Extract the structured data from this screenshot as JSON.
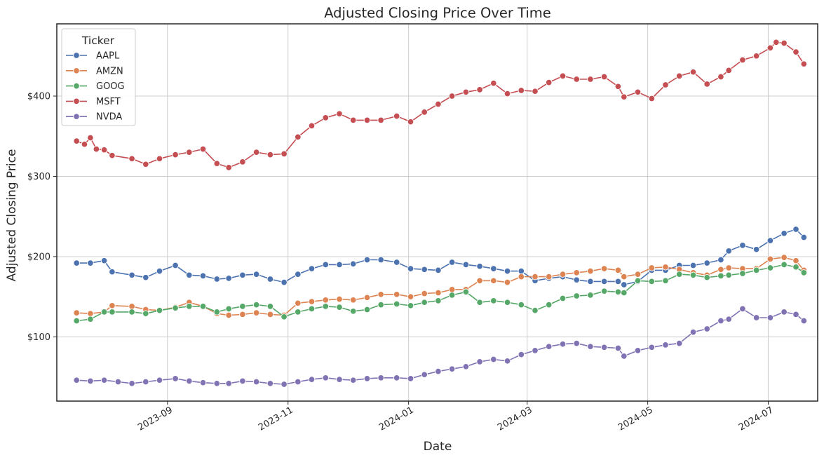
{
  "chart_data": {
    "type": "line",
    "title": "Adjusted Closing Price Over Time",
    "xlabel": "Date",
    "ylabel": "Adjusted Closing Price",
    "x_type": "date",
    "xlim": [
      "2023-07-07",
      "2024-07-26"
    ],
    "ylim": [
      20,
      490
    ],
    "x_ticks": [
      "2023-09-01",
      "2023-11-01",
      "2024-01-01",
      "2024-03-01",
      "2024-05-01",
      "2024-07-01"
    ],
    "x_tick_labels": [
      "2023-09",
      "2023-11",
      "2024-01",
      "2024-03",
      "2024-05",
      "2024-07"
    ],
    "y_ticks": [
      100,
      200,
      300,
      400
    ],
    "y_tick_labels": [
      "$100",
      "$200",
      "$300",
      "$400"
    ],
    "grid": true,
    "legend_title": "Ticker",
    "legend_position": "top-left",
    "series": [
      {
        "name": "AAPL",
        "color": "#4c72b0",
        "points": [
          [
            "2023-07-17",
            192
          ],
          [
            "2023-07-24",
            192
          ],
          [
            "2023-07-31",
            195
          ],
          [
            "2023-08-04",
            181
          ],
          [
            "2023-08-14",
            177
          ],
          [
            "2023-08-21",
            174
          ],
          [
            "2023-08-28",
            182
          ],
          [
            "2023-09-05",
            189
          ],
          [
            "2023-09-12",
            177
          ],
          [
            "2023-09-19",
            176
          ],
          [
            "2023-09-26",
            172
          ],
          [
            "2023-10-02",
            173
          ],
          [
            "2023-10-09",
            177
          ],
          [
            "2023-10-16",
            178
          ],
          [
            "2023-10-23",
            172
          ],
          [
            "2023-10-30",
            168
          ],
          [
            "2023-11-06",
            178
          ],
          [
            "2023-11-13",
            185
          ],
          [
            "2023-11-20",
            190
          ],
          [
            "2023-11-27",
            190
          ],
          [
            "2023-12-04",
            191
          ],
          [
            "2023-12-11",
            196
          ],
          [
            "2023-12-18",
            196
          ],
          [
            "2023-12-26",
            193
          ],
          [
            "2024-01-02",
            185
          ],
          [
            "2024-01-09",
            184
          ],
          [
            "2024-01-16",
            183
          ],
          [
            "2024-01-23",
            193
          ],
          [
            "2024-01-30",
            190
          ],
          [
            "2024-02-06",
            188
          ],
          [
            "2024-02-13",
            185
          ],
          [
            "2024-02-20",
            182
          ],
          [
            "2024-02-27",
            182
          ],
          [
            "2024-03-05",
            170
          ],
          [
            "2024-03-12",
            173
          ],
          [
            "2024-03-19",
            175
          ],
          [
            "2024-03-26",
            171
          ],
          [
            "2024-04-02",
            169
          ],
          [
            "2024-04-09",
            169
          ],
          [
            "2024-04-16",
            169
          ],
          [
            "2024-04-19",
            165
          ],
          [
            "2024-04-26",
            169
          ],
          [
            "2024-05-03",
            183
          ],
          [
            "2024-05-10",
            183
          ],
          [
            "2024-05-17",
            189
          ],
          [
            "2024-05-24",
            189
          ],
          [
            "2024-05-31",
            192
          ],
          [
            "2024-06-07",
            196
          ],
          [
            "2024-06-11",
            207
          ],
          [
            "2024-06-18",
            214
          ],
          [
            "2024-06-25",
            209
          ],
          [
            "2024-07-02",
            220
          ],
          [
            "2024-07-09",
            229
          ],
          [
            "2024-07-15",
            234
          ],
          [
            "2024-07-19",
            224
          ]
        ]
      },
      {
        "name": "AMZN",
        "color": "#dd8452",
        "points": [
          [
            "2023-07-17",
            130
          ],
          [
            "2023-07-24",
            129
          ],
          [
            "2023-07-31",
            131
          ],
          [
            "2023-08-04",
            139
          ],
          [
            "2023-08-14",
            138
          ],
          [
            "2023-08-21",
            134
          ],
          [
            "2023-08-28",
            133
          ],
          [
            "2023-09-05",
            137
          ],
          [
            "2023-09-12",
            143
          ],
          [
            "2023-09-19",
            138
          ],
          [
            "2023-09-26",
            129
          ],
          [
            "2023-10-02",
            127
          ],
          [
            "2023-10-09",
            128
          ],
          [
            "2023-10-16",
            130
          ],
          [
            "2023-10-23",
            128
          ],
          [
            "2023-10-30",
            127
          ],
          [
            "2023-11-06",
            142
          ],
          [
            "2023-11-13",
            144
          ],
          [
            "2023-11-20",
            146
          ],
          [
            "2023-11-27",
            147
          ],
          [
            "2023-12-04",
            146
          ],
          [
            "2023-12-11",
            149
          ],
          [
            "2023-12-18",
            153
          ],
          [
            "2023-12-26",
            153
          ],
          [
            "2024-01-02",
            150
          ],
          [
            "2024-01-09",
            154
          ],
          [
            "2024-01-16",
            155
          ],
          [
            "2024-01-23",
            159
          ],
          [
            "2024-01-30",
            159
          ],
          [
            "2024-02-06",
            170
          ],
          [
            "2024-02-13",
            170
          ],
          [
            "2024-02-20",
            168
          ],
          [
            "2024-02-27",
            175
          ],
          [
            "2024-03-05",
            175
          ],
          [
            "2024-03-12",
            175
          ],
          [
            "2024-03-19",
            178
          ],
          [
            "2024-03-26",
            180
          ],
          [
            "2024-04-02",
            182
          ],
          [
            "2024-04-09",
            185
          ],
          [
            "2024-04-16",
            183
          ],
          [
            "2024-04-19",
            175
          ],
          [
            "2024-04-26",
            178
          ],
          [
            "2024-05-03",
            186
          ],
          [
            "2024-05-10",
            187
          ],
          [
            "2024-05-17",
            184
          ],
          [
            "2024-05-24",
            180
          ],
          [
            "2024-05-31",
            177
          ],
          [
            "2024-06-07",
            184
          ],
          [
            "2024-06-11",
            186
          ],
          [
            "2024-06-18",
            185
          ],
          [
            "2024-06-25",
            185
          ],
          [
            "2024-07-02",
            197
          ],
          [
            "2024-07-09",
            199
          ],
          [
            "2024-07-15",
            195
          ],
          [
            "2024-07-19",
            183
          ]
        ]
      },
      {
        "name": "GOOG",
        "color": "#55a868",
        "points": [
          [
            "2023-07-17",
            120
          ],
          [
            "2023-07-24",
            122
          ],
          [
            "2023-07-31",
            131
          ],
          [
            "2023-08-04",
            131
          ],
          [
            "2023-08-14",
            131
          ],
          [
            "2023-08-21",
            129
          ],
          [
            "2023-08-28",
            133
          ],
          [
            "2023-09-05",
            136
          ],
          [
            "2023-09-12",
            138
          ],
          [
            "2023-09-19",
            138
          ],
          [
            "2023-09-26",
            131
          ],
          [
            "2023-10-02",
            135
          ],
          [
            "2023-10-09",
            138
          ],
          [
            "2023-10-16",
            140
          ],
          [
            "2023-10-23",
            138
          ],
          [
            "2023-10-30",
            125
          ],
          [
            "2023-11-06",
            131
          ],
          [
            "2023-11-13",
            135
          ],
          [
            "2023-11-20",
            138
          ],
          [
            "2023-11-27",
            137
          ],
          [
            "2023-12-04",
            132
          ],
          [
            "2023-12-11",
            134
          ],
          [
            "2023-12-18",
            140
          ],
          [
            "2023-12-26",
            141
          ],
          [
            "2024-01-02",
            139
          ],
          [
            "2024-01-09",
            143
          ],
          [
            "2024-01-16",
            145
          ],
          [
            "2024-01-23",
            152
          ],
          [
            "2024-01-30",
            156
          ],
          [
            "2024-02-06",
            143
          ],
          [
            "2024-02-13",
            145
          ],
          [
            "2024-02-20",
            143
          ],
          [
            "2024-02-27",
            140
          ],
          [
            "2024-03-05",
            133
          ],
          [
            "2024-03-12",
            140
          ],
          [
            "2024-03-19",
            148
          ],
          [
            "2024-03-26",
            151
          ],
          [
            "2024-04-02",
            152
          ],
          [
            "2024-04-09",
            157
          ],
          [
            "2024-04-16",
            156
          ],
          [
            "2024-04-19",
            155
          ],
          [
            "2024-04-26",
            170
          ],
          [
            "2024-05-03",
            169
          ],
          [
            "2024-05-10",
            170
          ],
          [
            "2024-05-17",
            178
          ],
          [
            "2024-05-24",
            177
          ],
          [
            "2024-05-31",
            174
          ],
          [
            "2024-06-07",
            176
          ],
          [
            "2024-06-11",
            177
          ],
          [
            "2024-06-18",
            179
          ],
          [
            "2024-06-25",
            183
          ],
          [
            "2024-07-02",
            186
          ],
          [
            "2024-07-09",
            190
          ],
          [
            "2024-07-15",
            187
          ],
          [
            "2024-07-19",
            180
          ]
        ]
      },
      {
        "name": "MSFT",
        "color": "#c44e52",
        "points": [
          [
            "2023-07-17",
            344
          ],
          [
            "2023-07-21",
            340
          ],
          [
            "2023-07-24",
            348
          ],
          [
            "2023-07-27",
            334
          ],
          [
            "2023-07-31",
            333
          ],
          [
            "2023-08-04",
            326
          ],
          [
            "2023-08-14",
            322
          ],
          [
            "2023-08-21",
            315
          ],
          [
            "2023-08-28",
            322
          ],
          [
            "2023-09-05",
            327
          ],
          [
            "2023-09-12",
            330
          ],
          [
            "2023-09-19",
            334
          ],
          [
            "2023-09-26",
            316
          ],
          [
            "2023-10-02",
            311
          ],
          [
            "2023-10-09",
            318
          ],
          [
            "2023-10-16",
            330
          ],
          [
            "2023-10-23",
            327
          ],
          [
            "2023-10-30",
            328
          ],
          [
            "2023-11-06",
            349
          ],
          [
            "2023-11-13",
            363
          ],
          [
            "2023-11-20",
            373
          ],
          [
            "2023-11-27",
            378
          ],
          [
            "2023-12-04",
            370
          ],
          [
            "2023-12-11",
            370
          ],
          [
            "2023-12-18",
            370
          ],
          [
            "2023-12-26",
            375
          ],
          [
            "2024-01-02",
            368
          ],
          [
            "2024-01-09",
            380
          ],
          [
            "2024-01-16",
            390
          ],
          [
            "2024-01-23",
            400
          ],
          [
            "2024-01-30",
            405
          ],
          [
            "2024-02-06",
            408
          ],
          [
            "2024-02-13",
            416
          ],
          [
            "2024-02-20",
            403
          ],
          [
            "2024-02-27",
            407
          ],
          [
            "2024-03-05",
            406
          ],
          [
            "2024-03-12",
            417
          ],
          [
            "2024-03-19",
            425
          ],
          [
            "2024-03-26",
            421
          ],
          [
            "2024-04-02",
            421
          ],
          [
            "2024-04-09",
            424
          ],
          [
            "2024-04-16",
            412
          ],
          [
            "2024-04-19",
            399
          ],
          [
            "2024-04-26",
            405
          ],
          [
            "2024-05-03",
            397
          ],
          [
            "2024-05-10",
            414
          ],
          [
            "2024-05-17",
            425
          ],
          [
            "2024-05-24",
            430
          ],
          [
            "2024-05-31",
            415
          ],
          [
            "2024-06-07",
            424
          ],
          [
            "2024-06-11",
            432
          ],
          [
            "2024-06-18",
            445
          ],
          [
            "2024-06-25",
            450
          ],
          [
            "2024-07-02",
            460
          ],
          [
            "2024-07-05",
            467
          ],
          [
            "2024-07-09",
            466
          ],
          [
            "2024-07-15",
            455
          ],
          [
            "2024-07-19",
            440
          ]
        ]
      },
      {
        "name": "NVDA",
        "color": "#8172b3",
        "points": [
          [
            "2023-07-17",
            46
          ],
          [
            "2023-07-24",
            45
          ],
          [
            "2023-07-31",
            46
          ],
          [
            "2023-08-07",
            44
          ],
          [
            "2023-08-14",
            42
          ],
          [
            "2023-08-21",
            44
          ],
          [
            "2023-08-28",
            46
          ],
          [
            "2023-09-05",
            48
          ],
          [
            "2023-09-12",
            45
          ],
          [
            "2023-09-19",
            43
          ],
          [
            "2023-09-26",
            42
          ],
          [
            "2023-10-02",
            42
          ],
          [
            "2023-10-09",
            45
          ],
          [
            "2023-10-16",
            44
          ],
          [
            "2023-10-23",
            42
          ],
          [
            "2023-10-30",
            41
          ],
          [
            "2023-11-06",
            44
          ],
          [
            "2023-11-13",
            47
          ],
          [
            "2023-11-20",
            49
          ],
          [
            "2023-11-27",
            47
          ],
          [
            "2023-12-04",
            46
          ],
          [
            "2023-12-11",
            48
          ],
          [
            "2023-12-18",
            49
          ],
          [
            "2023-12-26",
            49
          ],
          [
            "2024-01-02",
            48
          ],
          [
            "2024-01-09",
            53
          ],
          [
            "2024-01-16",
            57
          ],
          [
            "2024-01-23",
            60
          ],
          [
            "2024-01-30",
            63
          ],
          [
            "2024-02-06",
            69
          ],
          [
            "2024-02-13",
            72
          ],
          [
            "2024-02-20",
            70
          ],
          [
            "2024-02-27",
            78
          ],
          [
            "2024-03-05",
            83
          ],
          [
            "2024-03-12",
            88
          ],
          [
            "2024-03-19",
            91
          ],
          [
            "2024-03-26",
            92
          ],
          [
            "2024-04-02",
            88
          ],
          [
            "2024-04-09",
            87
          ],
          [
            "2024-04-16",
            86
          ],
          [
            "2024-04-19",
            76
          ],
          [
            "2024-04-26",
            83
          ],
          [
            "2024-05-03",
            87
          ],
          [
            "2024-05-10",
            90
          ],
          [
            "2024-05-17",
            92
          ],
          [
            "2024-05-24",
            106
          ],
          [
            "2024-05-31",
            110
          ],
          [
            "2024-06-07",
            120
          ],
          [
            "2024-06-11",
            122
          ],
          [
            "2024-06-18",
            135
          ],
          [
            "2024-06-25",
            124
          ],
          [
            "2024-07-02",
            124
          ],
          [
            "2024-07-09",
            131
          ],
          [
            "2024-07-15",
            128
          ],
          [
            "2024-07-19",
            120
          ]
        ]
      }
    ]
  }
}
